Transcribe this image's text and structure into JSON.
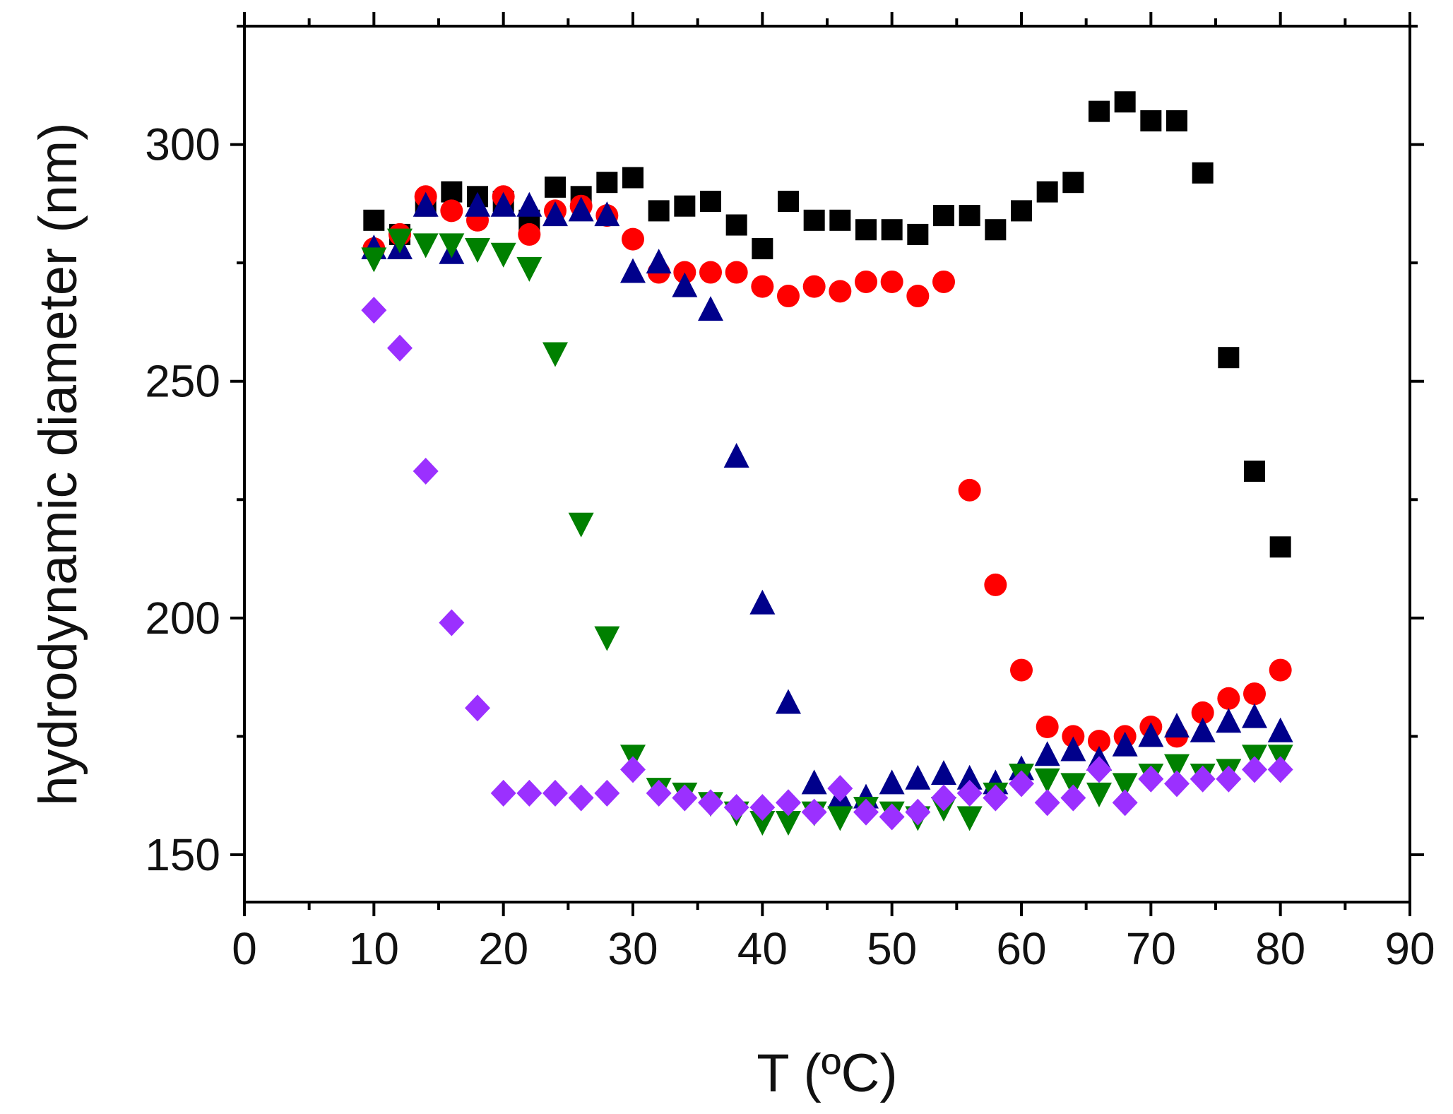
{
  "chart_data": {
    "type": "scatter",
    "title": "",
    "xlabel": "T (ºC)",
    "ylabel": "hydrodynamic diameter (nm)",
    "xlim": [
      0,
      90
    ],
    "ylim": [
      140,
      325
    ],
    "xticks": [
      0,
      10,
      20,
      30,
      40,
      50,
      60,
      70,
      80,
      90
    ],
    "yticks": [
      150,
      200,
      250,
      300
    ],
    "grid": false,
    "legend": "none",
    "series": [
      {
        "name": "black squares",
        "marker": "square",
        "color": "#000000",
        "x": [
          10,
          12,
          14,
          16,
          18,
          20,
          22,
          24,
          26,
          28,
          30,
          32,
          34,
          36,
          38,
          40,
          42,
          44,
          46,
          48,
          50,
          52,
          54,
          56,
          58,
          60,
          62,
          64,
          66,
          68,
          70,
          72,
          74,
          76,
          78,
          80
        ],
        "y": [
          284,
          281,
          287,
          290,
          289,
          288,
          284,
          291,
          289,
          292,
          293,
          286,
          287,
          288,
          283,
          278,
          288,
          284,
          284,
          282,
          282,
          281,
          285,
          285,
          282,
          286,
          290,
          292,
          307,
          309,
          305,
          305,
          294,
          255,
          231,
          215
        ]
      },
      {
        "name": "red circles",
        "marker": "circle",
        "color": "#ff0000",
        "x": [
          10,
          12,
          14,
          16,
          18,
          20,
          22,
          24,
          26,
          28,
          30,
          32,
          34,
          36,
          38,
          40,
          42,
          44,
          46,
          48,
          50,
          52,
          54,
          56,
          58,
          60,
          62,
          64,
          66,
          68,
          70,
          72,
          74,
          76,
          78,
          80
        ],
        "y": [
          278,
          281,
          289,
          286,
          284,
          289,
          281,
          286,
          287,
          285,
          280,
          273,
          273,
          273,
          273,
          270,
          268,
          270,
          269,
          271,
          271,
          268,
          271,
          227,
          207,
          189,
          177,
          175,
          174,
          175,
          177,
          175,
          180,
          183,
          184,
          189
        ]
      },
      {
        "name": "blue up-triangles",
        "marker": "triangle-up",
        "color": "#00008b",
        "x": [
          10,
          12,
          14,
          16,
          18,
          20,
          22,
          24,
          26,
          28,
          30,
          32,
          34,
          36,
          38,
          40,
          42,
          44,
          46,
          48,
          50,
          52,
          54,
          56,
          58,
          60,
          62,
          64,
          66,
          68,
          70,
          72,
          74,
          76,
          78,
          80
        ],
        "y": [
          278,
          278,
          287,
          277,
          287,
          287,
          287,
          285,
          286,
          285,
          273,
          275,
          270,
          265,
          234,
          203,
          182,
          165,
          162,
          162,
          165,
          166,
          167,
          166,
          165,
          168,
          171,
          172,
          170,
          173,
          175,
          177,
          176,
          178,
          179,
          176
        ]
      },
      {
        "name": "green down-triangles",
        "marker": "triangle-down",
        "color": "#008000",
        "x": [
          10,
          12,
          14,
          16,
          18,
          20,
          22,
          24,
          26,
          28,
          30,
          32,
          34,
          36,
          38,
          40,
          42,
          44,
          46,
          48,
          50,
          52,
          54,
          56,
          58,
          60,
          62,
          64,
          66,
          68,
          70,
          72,
          74,
          76,
          78,
          80
        ],
        "y": [
          276,
          280,
          279,
          279,
          278,
          277,
          274,
          256,
          220,
          196,
          171,
          164,
          163,
          161,
          159,
          157,
          157,
          159,
          158,
          160,
          159,
          158,
          160,
          158,
          163,
          167,
          166,
          165,
          163,
          165,
          167,
          169,
          167,
          168,
          171,
          171
        ]
      },
      {
        "name": "purple diamonds",
        "marker": "diamond",
        "color": "#9b30ff",
        "x": [
          10,
          12,
          14,
          16,
          18,
          20,
          22,
          24,
          26,
          28,
          30,
          32,
          34,
          36,
          38,
          40,
          42,
          44,
          46,
          48,
          50,
          52,
          54,
          56,
          58,
          60,
          62,
          64,
          66,
          68,
          70,
          72,
          74,
          76,
          78,
          80
        ],
        "y": [
          265,
          257,
          231,
          199,
          181,
          163,
          163,
          163,
          162,
          163,
          168,
          163,
          162,
          161,
          160,
          160,
          161,
          159,
          164,
          159,
          158,
          159,
          162,
          163,
          162,
          165,
          161,
          162,
          168,
          161,
          166,
          165,
          166,
          166,
          168,
          168
        ]
      }
    ]
  }
}
